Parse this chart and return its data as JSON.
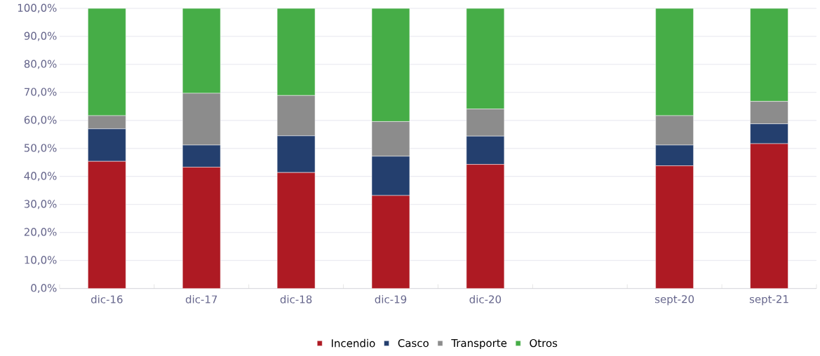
{
  "chart_data": {
    "type": "bar",
    "stacked": true,
    "categories": [
      "dic-16",
      "dic-17",
      "dic-18",
      "dic-19",
      "dic-20",
      null,
      "sept-20",
      "sept-21"
    ],
    "series": [
      {
        "name": "Incendio",
        "color": "#ae1a23",
        "values": [
          45.4,
          43.3,
          41.4,
          33.2,
          44.3,
          null,
          43.8,
          51.7
        ]
      },
      {
        "name": "Casco",
        "color": "#243f6e",
        "values": [
          11.6,
          7.9,
          13.1,
          14.0,
          10.1,
          null,
          7.4,
          7.1
        ]
      },
      {
        "name": "Transporte",
        "color": "#8c8c8c",
        "values": [
          4.7,
          18.5,
          14.4,
          12.4,
          9.7,
          null,
          10.5,
          8.0
        ]
      },
      {
        "name": "Otros",
        "color": "#46ad47",
        "values": [
          38.3,
          30.3,
          31.1,
          40.4,
          35.9,
          null,
          38.3,
          33.2
        ]
      }
    ],
    "ylim": [
      0,
      100
    ],
    "yticks": [
      {
        "value": 0,
        "label": "0,0%"
      },
      {
        "value": 10,
        "label": "10,0%"
      },
      {
        "value": 20,
        "label": "20,0%"
      },
      {
        "value": 30,
        "label": "30,0%"
      },
      {
        "value": 40,
        "label": "40,0%"
      },
      {
        "value": 50,
        "label": "50,0%"
      },
      {
        "value": 60,
        "label": "60,0%"
      },
      {
        "value": 70,
        "label": "70,0%"
      },
      {
        "value": 80,
        "label": "80,0%"
      },
      {
        "value": 90,
        "label": "90,0%"
      },
      {
        "value": 100,
        "label": "100,0%"
      }
    ],
    "grid": "y",
    "legend": "bottom"
  }
}
